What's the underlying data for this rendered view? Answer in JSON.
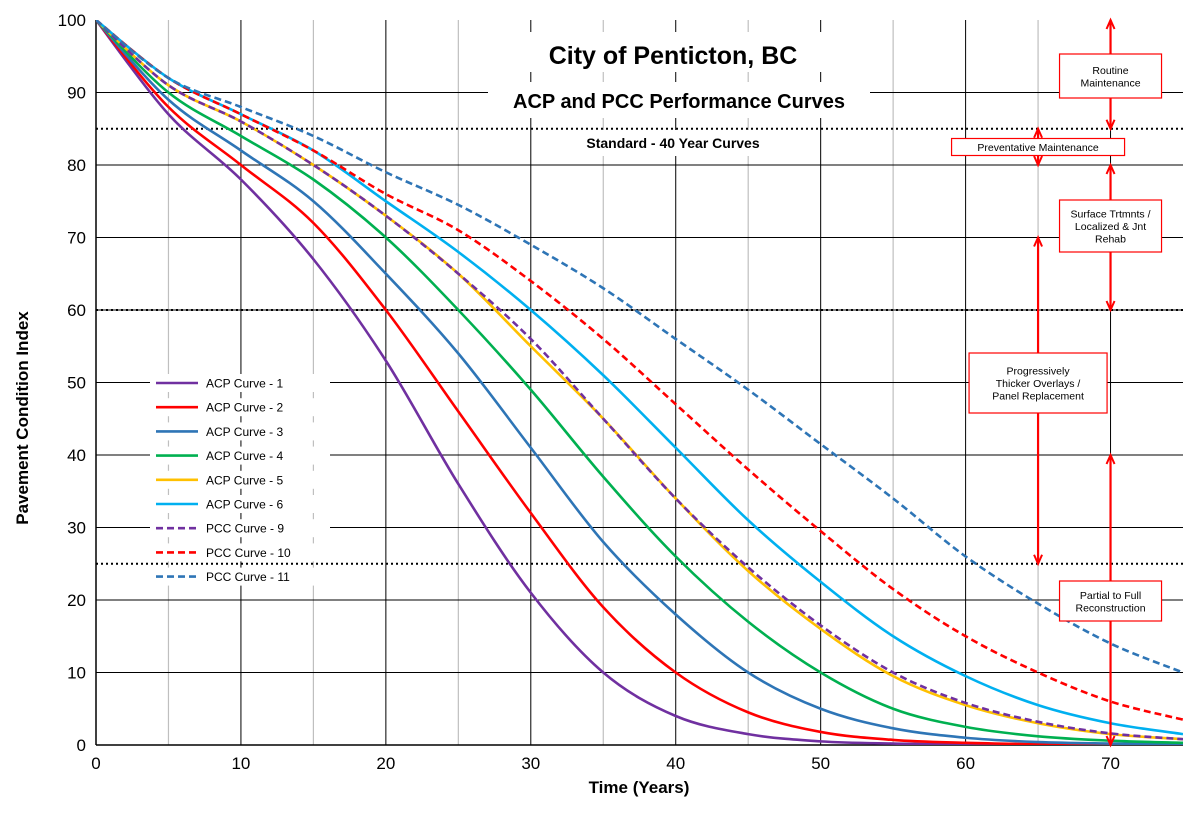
{
  "chart_data": {
    "type": "line",
    "title": "City of Penticton, BC",
    "subtitle": "ACP and PCC Performance Curves",
    "subtitle2": "Standard - 40 Year Curves",
    "xlabel": "Time (Years)",
    "ylabel": "Pavement Condition Index",
    "xlim": [
      0,
      75
    ],
    "ylim": [
      0,
      100
    ],
    "x_ticks": [
      0,
      10,
      20,
      30,
      40,
      50,
      60,
      70
    ],
    "y_ticks": [
      0,
      10,
      20,
      30,
      40,
      50,
      60,
      70,
      80,
      90,
      100
    ],
    "x_ticks_text": [
      "0",
      "10",
      "20",
      "30",
      "40",
      "50",
      "60",
      "70"
    ],
    "y_ticks_text": [
      "0",
      "10",
      "20",
      "30",
      "40",
      "50",
      "60",
      "70",
      "80",
      "90",
      "100"
    ],
    "grid": true,
    "threshold_lines": [
      85,
      60,
      25
    ],
    "series": [
      {
        "name": "ACP Curve - 1",
        "color": "#7030a0",
        "dashed": false,
        "x": [
          0,
          5,
          10,
          15,
          20,
          25,
          30,
          35,
          40,
          45,
          50,
          55,
          60,
          65,
          70,
          75
        ],
        "y": [
          100,
          87,
          78,
          67,
          53,
          36,
          21,
          10,
          4,
          1.5,
          0.5,
          0.2,
          0.1,
          0,
          0,
          0
        ]
      },
      {
        "name": "ACP Curve - 2",
        "color": "#ff0000",
        "dashed": false,
        "x": [
          0,
          5,
          10,
          15,
          20,
          25,
          30,
          35,
          40,
          45,
          50,
          55,
          60,
          65,
          70,
          75
        ],
        "y": [
          100,
          88,
          80,
          72,
          60,
          46,
          32,
          19,
          10,
          4.5,
          1.8,
          0.7,
          0.3,
          0.1,
          0,
          0
        ]
      },
      {
        "name": "ACP Curve - 3",
        "color": "#2e75b6",
        "dashed": false,
        "x": [
          0,
          5,
          10,
          15,
          20,
          25,
          30,
          35,
          40,
          45,
          50,
          55,
          60,
          65,
          70,
          75
        ],
        "y": [
          100,
          89,
          82,
          75,
          65,
          54,
          41,
          28,
          18,
          10,
          5,
          2.3,
          1,
          0.4,
          0.2,
          0.1
        ]
      },
      {
        "name": "ACP Curve - 4",
        "color": "#00b050",
        "dashed": false,
        "x": [
          0,
          5,
          10,
          15,
          20,
          25,
          30,
          35,
          40,
          45,
          50,
          55,
          60,
          65,
          70,
          75
        ],
        "y": [
          100,
          90,
          84,
          78,
          70,
          60,
          49,
          37,
          26,
          17,
          10,
          5,
          2.5,
          1.2,
          0.6,
          0.3
        ]
      },
      {
        "name": "ACP Curve - 5",
        "color": "#ffc000",
        "dashed": false,
        "x": [
          0,
          5,
          10,
          15,
          20,
          25,
          30,
          35,
          40,
          45,
          50,
          55,
          60,
          65,
          70,
          75
        ],
        "y": [
          100,
          91,
          86,
          80,
          73,
          65,
          55,
          45,
          34,
          24,
          16,
          9.5,
          5.5,
          3,
          1.5,
          0.8
        ]
      },
      {
        "name": "ACP Curve - 6",
        "color": "#00b0f0",
        "dashed": false,
        "x": [
          0,
          5,
          10,
          15,
          20,
          25,
          30,
          35,
          40,
          45,
          50,
          55,
          60,
          65,
          70,
          75
        ],
        "y": [
          100,
          92,
          87,
          82,
          75,
          68,
          60,
          51,
          41,
          31,
          22.5,
          15,
          9.5,
          5.5,
          3,
          1.5
        ]
      },
      {
        "name": "PCC Curve - 9",
        "color": "#7030a0",
        "dashed": true,
        "x": [
          0,
          5,
          10,
          15,
          20,
          25,
          30,
          35,
          40,
          45,
          50,
          55,
          60,
          65,
          70,
          75
        ],
        "y": [
          100,
          91,
          86,
          80,
          73,
          65,
          56,
          45,
          34,
          24.5,
          16.5,
          10,
          5.8,
          3.2,
          1.6,
          0.8
        ]
      },
      {
        "name": "PCC Curve - 10",
        "color": "#ff0000",
        "dashed": true,
        "x": [
          0,
          5,
          10,
          15,
          20,
          25,
          30,
          35,
          40,
          45,
          50,
          55,
          60,
          65,
          70,
          75
        ],
        "y": [
          100,
          92,
          87,
          82,
          76,
          71,
          64,
          56,
          47,
          38,
          29.5,
          21.5,
          15,
          10,
          6,
          3.5
        ]
      },
      {
        "name": "PCC Curve - 11",
        "color": "#2e75b6",
        "dashed": true,
        "x": [
          0,
          5,
          10,
          15,
          20,
          25,
          30,
          35,
          40,
          45,
          50,
          55,
          60,
          65,
          70,
          75
        ],
        "y": [
          100,
          92,
          88,
          84,
          79,
          74.5,
          69,
          63,
          56,
          49,
          41.5,
          34,
          26,
          19.5,
          14,
          10
        ]
      }
    ],
    "annotations": {
      "routine": {
        "lines": [
          "Routine",
          "Maintenance"
        ],
        "x": 70,
        "y_range": [
          85,
          100
        ]
      },
      "preventative": {
        "lines": [
          "Preventative Maintenance"
        ],
        "x": 65,
        "y_range": [
          80,
          85
        ]
      },
      "surface": {
        "lines": [
          "Surface Trtmnts /",
          "Localized  & Jnt",
          "Rehab"
        ],
        "x": 70,
        "y_range": [
          60,
          80
        ]
      },
      "progressive": {
        "lines": [
          "Progressively",
          "Thicker Overlays /",
          "Panel Replacement"
        ],
        "x": 65,
        "y_range": [
          25,
          70
        ]
      },
      "partial": {
        "lines": [
          "Partial to Full",
          "Reconstruction"
        ],
        "x": 70,
        "y_range": [
          0,
          40
        ]
      }
    }
  }
}
